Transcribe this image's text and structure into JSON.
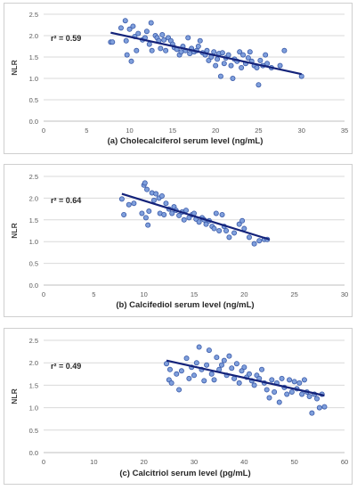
{
  "chart_data": [
    {
      "type": "scatter",
      "ylabel": "NLR",
      "xlabel": "(a) Cholecalciferol serum level (ng/mL)",
      "annotation": "r² = 0.59",
      "xlim": [
        0,
        35
      ],
      "ylim": [
        0.0,
        2.5
      ],
      "xticks": [
        "0",
        "5",
        "10",
        "15",
        "20",
        "25",
        "30",
        "35"
      ],
      "yticks": [
        "0.0",
        "0.5",
        "1.0",
        "1.5",
        "2.0",
        "2.5"
      ],
      "grid": "horizontal",
      "trendline": [
        [
          7.8,
          2.07
        ],
        [
          30,
          1.1
        ]
      ],
      "points": [
        [
          7.8,
          1.85
        ],
        [
          8.0,
          1.85
        ],
        [
          9.0,
          2.18
        ],
        [
          9.5,
          2.35
        ],
        [
          9.6,
          1.88
        ],
        [
          9.7,
          1.55
        ],
        [
          10.0,
          2.15
        ],
        [
          10.2,
          1.4
        ],
        [
          10.4,
          2.22
        ],
        [
          10.6,
          1.98
        ],
        [
          10.8,
          1.65
        ],
        [
          11.0,
          2.05
        ],
        [
          11.5,
          1.9
        ],
        [
          11.8,
          1.95
        ],
        [
          12.0,
          2.1
        ],
        [
          12.3,
          1.8
        ],
        [
          12.5,
          2.3
        ],
        [
          12.6,
          1.65
        ],
        [
          13.0,
          2.0
        ],
        [
          13.2,
          1.95
        ],
        [
          13.4,
          1.88
        ],
        [
          13.6,
          1.7
        ],
        [
          13.8,
          2.02
        ],
        [
          14.0,
          1.9
        ],
        [
          14.2,
          1.65
        ],
        [
          14.5,
          1.95
        ],
        [
          14.8,
          1.88
        ],
        [
          15.0,
          1.8
        ],
        [
          15.2,
          1.72
        ],
        [
          15.5,
          1.68
        ],
        [
          15.8,
          1.55
        ],
        [
          16.0,
          1.62
        ],
        [
          16.2,
          1.75
        ],
        [
          16.5,
          1.65
        ],
        [
          16.8,
          1.95
        ],
        [
          17.0,
          1.58
        ],
        [
          17.2,
          1.7
        ],
        [
          17.5,
          1.62
        ],
        [
          17.8,
          1.65
        ],
        [
          18.0,
          1.75
        ],
        [
          18.2,
          1.88
        ],
        [
          18.5,
          1.6
        ],
        [
          18.8,
          1.55
        ],
        [
          19.0,
          1.65
        ],
        [
          19.2,
          1.42
        ],
        [
          19.5,
          1.5
        ],
        [
          19.8,
          1.62
        ],
        [
          20.0,
          1.3
        ],
        [
          20.2,
          1.45
        ],
        [
          20.4,
          1.58
        ],
        [
          20.6,
          1.05
        ],
        [
          20.8,
          1.6
        ],
        [
          21.0,
          1.35
        ],
        [
          21.2,
          1.48
        ],
        [
          21.5,
          1.55
        ],
        [
          21.8,
          1.3
        ],
        [
          22.0,
          1.0
        ],
        [
          22.2,
          1.45
        ],
        [
          22.5,
          1.4
        ],
        [
          22.8,
          1.62
        ],
        [
          23.0,
          1.25
        ],
        [
          23.2,
          1.55
        ],
        [
          23.5,
          1.35
        ],
        [
          23.8,
          1.48
        ],
        [
          24.0,
          1.62
        ],
        [
          24.2,
          1.4
        ],
        [
          24.5,
          1.3
        ],
        [
          24.8,
          1.25
        ],
        [
          25.0,
          0.85
        ],
        [
          25.2,
          1.42
        ],
        [
          25.5,
          1.3
        ],
        [
          25.8,
          1.55
        ],
        [
          26.0,
          1.35
        ],
        [
          26.5,
          1.25
        ],
        [
          27.5,
          1.3
        ],
        [
          28.0,
          1.65
        ],
        [
          30.0,
          1.05
        ]
      ]
    },
    {
      "type": "scatter",
      "ylabel": "NLR",
      "xlabel": "(b) Calcifediol serum level (ng/mL)",
      "annotation": "r² = 0.64",
      "xlim": [
        0,
        30
      ],
      "ylim": [
        0.0,
        2.5
      ],
      "xticks": [
        "0",
        "5",
        "10",
        "15",
        "20",
        "25",
        "30"
      ],
      "yticks": [
        "0.0",
        "0.5",
        "1.0",
        "1.5",
        "2.0",
        "2.5"
      ],
      "grid": "horizontal",
      "trendline": [
        [
          7.8,
          2.1
        ],
        [
          22.5,
          1.05
        ]
      ],
      "points": [
        [
          7.8,
          1.98
        ],
        [
          8.0,
          1.62
        ],
        [
          8.5,
          1.85
        ],
        [
          9.0,
          1.88
        ],
        [
          9.8,
          1.65
        ],
        [
          10.0,
          2.3
        ],
        [
          10.1,
          2.35
        ],
        [
          10.2,
          1.55
        ],
        [
          10.3,
          2.2
        ],
        [
          10.4,
          1.38
        ],
        [
          10.5,
          1.7
        ],
        [
          10.8,
          2.12
        ],
        [
          11.0,
          1.95
        ],
        [
          11.2,
          2.1
        ],
        [
          11.5,
          2.0
        ],
        [
          11.6,
          1.65
        ],
        [
          11.8,
          2.05
        ],
        [
          12.0,
          1.62
        ],
        [
          12.2,
          1.88
        ],
        [
          12.5,
          1.75
        ],
        [
          12.8,
          1.65
        ],
        [
          13.0,
          1.8
        ],
        [
          13.2,
          1.72
        ],
        [
          13.5,
          1.6
        ],
        [
          13.8,
          1.68
        ],
        [
          14.0,
          1.5
        ],
        [
          14.2,
          1.72
        ],
        [
          14.5,
          1.55
        ],
        [
          14.8,
          1.62
        ],
        [
          15.0,
          1.65
        ],
        [
          15.2,
          1.52
        ],
        [
          15.5,
          1.45
        ],
        [
          15.8,
          1.55
        ],
        [
          16.0,
          1.5
        ],
        [
          16.2,
          1.4
        ],
        [
          16.5,
          1.48
        ],
        [
          16.8,
          1.35
        ],
        [
          17.0,
          1.3
        ],
        [
          17.2,
          1.65
        ],
        [
          17.5,
          1.25
        ],
        [
          17.8,
          1.62
        ],
        [
          18.0,
          1.35
        ],
        [
          18.2,
          1.25
        ],
        [
          18.5,
          1.1
        ],
        [
          19.0,
          1.2
        ],
        [
          19.5,
          1.4
        ],
        [
          19.8,
          1.48
        ],
        [
          20.0,
          1.3
        ],
        [
          20.5,
          1.1
        ],
        [
          21.0,
          0.95
        ],
        [
          21.5,
          1.02
        ],
        [
          22.0,
          1.05
        ],
        [
          22.3,
          1.05
        ]
      ]
    },
    {
      "type": "scatter",
      "ylabel": "NLR",
      "xlabel": "(c) Calcitriol serum level (pg/mL)",
      "annotation": "r² = 0.49",
      "xlim": [
        0,
        60
      ],
      "ylim": [
        0.0,
        2.5
      ],
      "xticks": [
        "0",
        "10",
        "20",
        "30",
        "40",
        "50",
        "60"
      ],
      "yticks": [
        "0.0",
        "0.5",
        "1.0",
        "1.5",
        "2.0",
        "2.5"
      ],
      "grid": "horizontal",
      "trendline": [
        [
          24.5,
          2.05
        ],
        [
          56,
          1.27
        ]
      ],
      "points": [
        [
          24.5,
          1.98
        ],
        [
          25.0,
          1.62
        ],
        [
          25.2,
          1.85
        ],
        [
          25.5,
          1.55
        ],
        [
          26.5,
          1.75
        ],
        [
          27.0,
          1.4
        ],
        [
          27.5,
          1.82
        ],
        [
          28.5,
          2.1
        ],
        [
          29.0,
          1.65
        ],
        [
          29.5,
          1.9
        ],
        [
          30.0,
          1.72
        ],
        [
          30.5,
          2.0
        ],
        [
          31.0,
          2.35
        ],
        [
          31.5,
          1.85
        ],
        [
          32.0,
          1.6
        ],
        [
          32.5,
          1.95
        ],
        [
          33.0,
          2.28
        ],
        [
          33.5,
          1.75
        ],
        [
          34.0,
          1.62
        ],
        [
          34.5,
          2.12
        ],
        [
          35.0,
          1.85
        ],
        [
          35.5,
          1.95
        ],
        [
          36.0,
          2.05
        ],
        [
          36.5,
          1.72
        ],
        [
          37.0,
          2.15
        ],
        [
          37.5,
          1.88
        ],
        [
          38.0,
          1.65
        ],
        [
          38.5,
          1.98
        ],
        [
          39.0,
          1.55
        ],
        [
          39.5,
          1.82
        ],
        [
          40.0,
          1.9
        ],
        [
          40.5,
          1.68
        ],
        [
          41.0,
          1.75
        ],
        [
          41.5,
          1.6
        ],
        [
          42.0,
          1.5
        ],
        [
          42.5,
          1.72
        ],
        [
          43.0,
          1.65
        ],
        [
          43.5,
          1.85
        ],
        [
          44.0,
          1.55
        ],
        [
          44.5,
          1.4
        ],
        [
          45.0,
          1.22
        ],
        [
          45.5,
          1.62
        ],
        [
          46.0,
          1.35
        ],
        [
          46.5,
          1.55
        ],
        [
          47.0,
          1.12
        ],
        [
          47.5,
          1.65
        ],
        [
          48.0,
          1.45
        ],
        [
          48.5,
          1.3
        ],
        [
          49.0,
          1.62
        ],
        [
          49.5,
          1.35
        ],
        [
          50.0,
          1.58
        ],
        [
          50.5,
          1.42
        ],
        [
          51.0,
          1.55
        ],
        [
          51.5,
          1.3
        ],
        [
          52.0,
          1.62
        ],
        [
          52.5,
          1.35
        ],
        [
          53.0,
          1.25
        ],
        [
          53.5,
          0.88
        ],
        [
          54.0,
          1.3
        ],
        [
          54.5,
          1.2
        ],
        [
          55.0,
          1.0
        ],
        [
          55.5,
          1.3
        ],
        [
          56.0,
          1.02
        ]
      ]
    }
  ]
}
